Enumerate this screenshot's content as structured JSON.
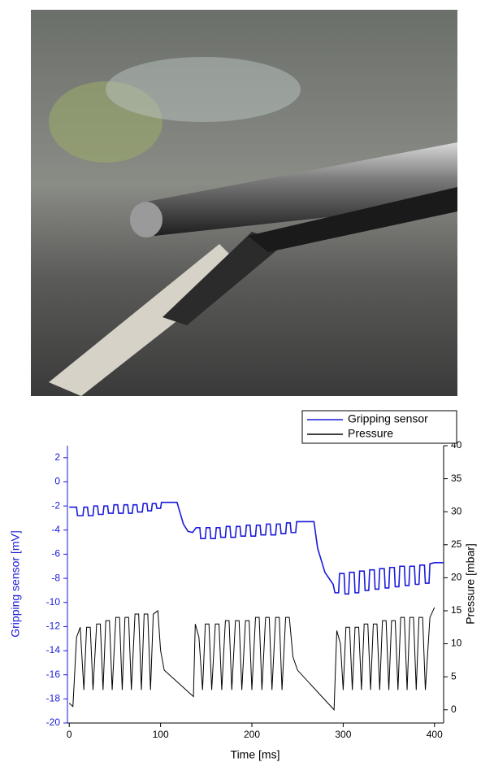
{
  "chart_data": {
    "type": "line",
    "xlabel": "Time [ms]",
    "ylabel": "Gripping sensor [mV]",
    "y2label": "Pressure [mbar]",
    "xlim": [
      -2,
      410
    ],
    "xticks": [
      0,
      100,
      200,
      300,
      400
    ],
    "ylim": [
      -20,
      3
    ],
    "yticks": [
      -20,
      -18,
      -16,
      -14,
      -12,
      -10,
      -8,
      -6,
      -4,
      -2,
      0,
      2
    ],
    "y2lim": [
      -2,
      40
    ],
    "y2ticks": [
      0,
      5,
      10,
      15,
      20,
      25,
      30,
      35,
      40
    ],
    "legend": "top-right",
    "series": [
      {
        "name": "Gripping sensor",
        "color": "#1a1adb",
        "x": [
          0,
          8,
          9,
          15,
          16,
          20,
          21,
          26,
          27,
          31,
          32,
          37,
          38,
          42,
          43,
          48,
          49,
          53,
          54,
          59,
          60,
          64,
          65,
          69,
          70,
          74,
          75,
          80,
          81,
          85,
          86,
          90,
          91,
          95,
          96,
          100,
          101,
          118,
          125,
          130,
          135,
          139,
          143,
          144,
          149,
          150,
          154,
          155,
          160,
          161,
          165,
          166,
          171,
          172,
          176,
          177,
          182,
          183,
          187,
          188,
          193,
          194,
          198,
          199,
          204,
          205,
          209,
          210,
          215,
          216,
          220,
          221,
          226,
          227,
          231,
          232,
          237,
          238,
          242,
          243,
          248,
          249,
          268,
          272,
          280,
          289,
          291,
          295,
          296,
          301,
          302,
          306,
          307,
          312,
          313,
          317,
          318,
          323,
          324,
          328,
          329,
          334,
          335,
          339,
          340,
          345,
          346,
          350,
          351,
          356,
          357,
          361,
          362,
          367,
          368,
          372,
          373,
          378,
          379,
          383,
          384,
          389,
          390,
          394,
          395,
          400,
          410
        ],
        "values": [
          -2.1,
          -2.1,
          -2.8,
          -2.8,
          -2.1,
          -2.1,
          -2.8,
          -2.8,
          -2,
          -2,
          -2.7,
          -2.7,
          -2,
          -2,
          -2.6,
          -2.6,
          -1.9,
          -1.9,
          -2.6,
          -2.6,
          -1.9,
          -1.9,
          -2.6,
          -2.6,
          -1.9,
          -1.9,
          -2.5,
          -2.5,
          -1.8,
          -1.8,
          -2.4,
          -2.4,
          -1.8,
          -1.8,
          -2.2,
          -2.2,
          -1.7,
          -1.7,
          -3.5,
          -4.1,
          -4.2,
          -3.8,
          -3.8,
          -4.7,
          -4.7,
          -3.8,
          -3.8,
          -4.7,
          -4.7,
          -3.8,
          -3.8,
          -4.6,
          -4.6,
          -3.7,
          -3.7,
          -4.6,
          -4.6,
          -3.7,
          -3.7,
          -4.5,
          -4.5,
          -3.6,
          -3.6,
          -4.5,
          -4.5,
          -3.6,
          -3.6,
          -4.4,
          -4.4,
          -3.5,
          -3.5,
          -4.4,
          -4.4,
          -3.5,
          -3.5,
          -4.3,
          -4.3,
          -3.4,
          -3.4,
          -4.2,
          -4.2,
          -3.3,
          -3.3,
          -5.5,
          -7.5,
          -8.5,
          -9.2,
          -9.2,
          -7.6,
          -7.6,
          -9.3,
          -9.3,
          -7.5,
          -7.5,
          -9.2,
          -9.2,
          -7.4,
          -7.4,
          -9,
          -9,
          -7.3,
          -7.3,
          -8.9,
          -8.9,
          -7.2,
          -7.2,
          -8.8,
          -8.8,
          -7.1,
          -7.1,
          -8.7,
          -8.7,
          -7,
          -7,
          -8.6,
          -8.6,
          -7,
          -7,
          -8.5,
          -8.5,
          -6.9,
          -6.9,
          -8.4,
          -8.4,
          -6.8,
          -6.7,
          -6.7
        ]
      },
      {
        "name": "Pressure",
        "color": "#000000",
        "axis": "y2",
        "x": [
          0,
          4,
          8,
          12,
          16,
          19,
          23,
          26,
          30,
          34,
          37,
          40,
          44,
          47,
          51,
          55,
          58,
          61,
          65,
          68,
          72,
          76,
          79,
          82,
          86,
          89,
          92,
          97,
          100,
          104,
          136,
          138,
          142,
          146,
          149,
          153,
          156,
          160,
          164,
          167,
          171,
          175,
          178,
          182,
          186,
          189,
          193,
          197,
          200,
          204,
          208,
          211,
          215,
          219,
          222,
          226,
          230,
          233,
          237,
          241,
          245,
          250,
          290,
          293,
          297,
          300,
          303,
          307,
          310,
          313,
          317,
          320,
          323,
          327,
          330,
          333,
          337,
          340,
          343,
          347,
          350,
          353,
          357,
          360,
          363,
          367,
          370,
          373,
          377,
          380,
          383,
          387,
          390,
          395,
          400
        ],
        "values": [
          1,
          0.5,
          11,
          12.5,
          3,
          12.5,
          12.5,
          3,
          13,
          13,
          3,
          13.5,
          13.5,
          3,
          14,
          14,
          3,
          14,
          14,
          3,
          14.5,
          14.5,
          3,
          14.5,
          14.5,
          3,
          14.5,
          15,
          9,
          6,
          2,
          13,
          11,
          3,
          13,
          13,
          3,
          13,
          13,
          3,
          13.5,
          13.5,
          3,
          13.5,
          13.5,
          3,
          13.5,
          13.5,
          3,
          14,
          14,
          3,
          14,
          14,
          3,
          14,
          14,
          3,
          14,
          14,
          8,
          6,
          0,
          12,
          10,
          3,
          12.5,
          12.5,
          3,
          12.5,
          12.5,
          3,
          13,
          13,
          3,
          13,
          13,
          3,
          13.5,
          13.5,
          3,
          13.5,
          13.5,
          3,
          14,
          14,
          3,
          14,
          14,
          3,
          14,
          14,
          3,
          14,
          15.5
        ]
      }
    ]
  }
}
